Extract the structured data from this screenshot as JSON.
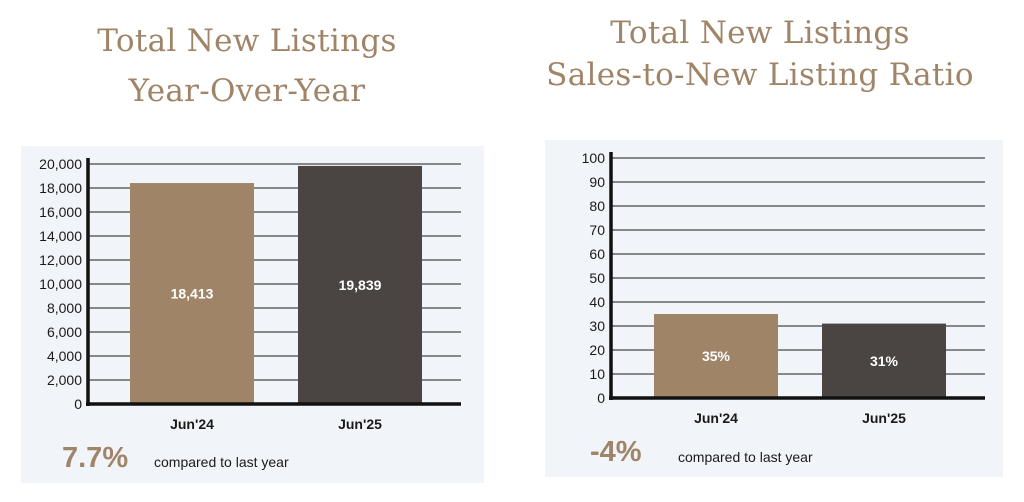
{
  "left": {
    "title_line1": "Total New Listings",
    "title_line2": "Year-Over-Year",
    "change": "7.7%",
    "change_label": "compared to last year"
  },
  "right": {
    "title_line1": "Total New Listings",
    "title_line2": "Sales-to-New Listing Ratio",
    "change": "-4%",
    "change_label": "compared to last year"
  },
  "colors": {
    "accent": "#a08468",
    "dark_bar": "#4a4542",
    "panel_bg": "#f1f4f8"
  },
  "chart_data": [
    {
      "type": "bar",
      "categories": [
        "Jun'24",
        "Jun'25"
      ],
      "values": [
        18413,
        19839
      ],
      "value_labels": [
        "18,413",
        "19,839"
      ],
      "ylim": [
        0,
        20000
      ],
      "yticks": [
        0,
        2000,
        4000,
        6000,
        8000,
        10000,
        12000,
        14000,
        16000,
        18000,
        20000
      ],
      "ytick_labels": [
        "0",
        "2,000",
        "4,000",
        "6,000",
        "8,000",
        "10,000",
        "12,000",
        "14,000",
        "16,000",
        "18,000",
        "20,000"
      ],
      "bar_colors": [
        "#a08468",
        "#4a4542"
      ],
      "grid": true
    },
    {
      "type": "bar",
      "categories": [
        "Jun'24",
        "Jun'25"
      ],
      "values": [
        35,
        31
      ],
      "value_labels": [
        "35%",
        "31%"
      ],
      "ylim": [
        0,
        100
      ],
      "yticks": [
        0,
        10,
        20,
        30,
        40,
        50,
        60,
        70,
        80,
        90,
        100
      ],
      "ytick_labels": [
        "0",
        "10",
        "20",
        "30",
        "40",
        "50",
        "60",
        "70",
        "80",
        "90",
        "100"
      ],
      "bar_colors": [
        "#a08468",
        "#4a4542"
      ],
      "grid": true
    }
  ]
}
